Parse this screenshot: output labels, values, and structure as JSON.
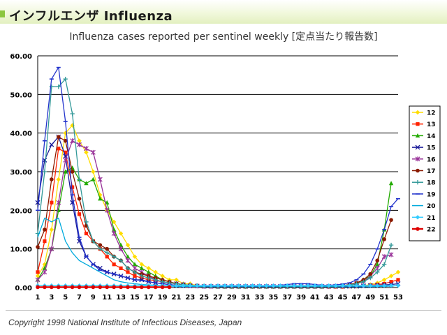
{
  "header": {
    "title": "インフルエンザ Influenza",
    "accent_color": "#8cc63f"
  },
  "footer": {
    "copyright": "Copyright 1998 National Institute of Infectious Diseases, Japan"
  },
  "chart_data": {
    "type": "line",
    "title": "Influenza cases reported per sentinel weekly [定点当たり報告数]",
    "xlabel": "",
    "ylabel": "",
    "x": [
      1,
      2,
      3,
      4,
      5,
      6,
      7,
      8,
      9,
      10,
      11,
      12,
      13,
      14,
      15,
      16,
      17,
      18,
      19,
      20,
      21,
      22,
      23,
      24,
      25,
      26,
      27,
      28,
      29,
      30,
      31,
      32,
      33,
      34,
      35,
      36,
      37,
      38,
      39,
      40,
      41,
      42,
      43,
      44,
      45,
      46,
      47,
      48,
      49,
      50,
      51,
      52,
      53
    ],
    "xticks": [
      "1",
      "3",
      "5",
      "7",
      "9",
      "11",
      "13",
      "15",
      "17",
      "19",
      "21",
      "23",
      "25",
      "27",
      "29",
      "31",
      "33",
      "35",
      "37",
      "39",
      "41",
      "43",
      "45",
      "47",
      "49",
      "51",
      "53"
    ],
    "ylim": [
      0,
      60
    ],
    "yticks": [
      "0.00",
      "10.00",
      "20.00",
      "30.00",
      "40.00",
      "50.00",
      "60.00"
    ],
    "grid": "horizontal",
    "legend_position": "right",
    "series": [
      {
        "name": "12",
        "color": "#ffdd00",
        "marker": "diamond",
        "values": [
          3,
          6,
          15,
          28,
          40,
          42,
          38,
          35,
          30,
          24,
          20,
          17,
          14,
          11,
          8,
          6,
          5,
          4,
          3,
          2,
          2,
          1,
          1,
          0.5,
          0.5,
          0.3,
          0.3,
          0.2,
          0.2,
          0.2,
          0.2,
          0.2,
          0.2,
          0.2,
          0.2,
          0.2,
          0.2,
          0.2,
          0.2,
          0.2,
          0.2,
          0.2,
          0.2,
          0.2,
          0.2,
          0.3,
          0.3,
          0.5,
          0.8,
          1.2,
          2,
          3,
          4
        ]
      },
      {
        "name": "13",
        "color": "#ff2200",
        "marker": "square",
        "values": [
          4,
          12,
          22,
          36,
          35,
          26,
          19,
          14,
          12,
          10,
          8,
          6,
          5,
          4,
          3,
          2.5,
          2,
          1.8,
          1.5,
          1.2,
          1,
          0.8,
          0.5,
          0.4,
          0.3,
          0.3,
          0.2,
          0.2,
          0.2,
          0.2,
          0.2,
          0.2,
          0.2,
          0.2,
          0.2,
          0.2,
          0.2,
          0.2,
          0.2,
          0.2,
          0.2,
          0.2,
          0.2,
          0.2,
          0.2,
          0.3,
          0.3,
          0.4,
          0.6,
          0.8,
          1,
          1.5,
          2
        ]
      },
      {
        "name": "14",
        "color": "#22aa00",
        "marker": "triangle",
        "values": [
          2,
          5,
          10,
          20,
          30,
          31,
          28,
          27,
          28,
          23,
          22,
          15,
          11,
          8,
          6,
          5,
          4,
          3,
          2,
          1.5,
          1,
          0.8,
          0.5,
          0.4,
          0.3,
          0.3,
          0.2,
          0.2,
          0.2,
          0.2,
          0.2,
          0.2,
          0.2,
          0.2,
          0.2,
          0.2,
          0.2,
          0.2,
          0.2,
          0.2,
          0.2,
          0.2,
          0.3,
          0.3,
          0.4,
          0.6,
          1,
          2,
          3,
          6,
          15,
          27,
          null
        ]
      },
      {
        "name": "15",
        "color": "#1a1a99",
        "marker": "x",
        "values": [
          22,
          33,
          37,
          39,
          34,
          22,
          12,
          8,
          6,
          5,
          4,
          3.5,
          3,
          2.5,
          2,
          2,
          1.5,
          1.2,
          1,
          0.8,
          0.6,
          0.5,
          0.4,
          0.4,
          0.3,
          0.3,
          0.3,
          0.3,
          0.3,
          0.3,
          0.3,
          0.3,
          0.3,
          0.3,
          0.3,
          0.3,
          0.3,
          0.3,
          0.3,
          0.3,
          0.3,
          0.3,
          0.3,
          0.3,
          0.3,
          0.3,
          0.3,
          0.4,
          0.5,
          0.6,
          0.7,
          0.8,
          1
        ]
      },
      {
        "name": "16",
        "color": "#993399",
        "marker": "star",
        "values": [
          2,
          4,
          10,
          22,
          33,
          38,
          37,
          36,
          35,
          28,
          20,
          14,
          10,
          7,
          5,
          4,
          3,
          2,
          1.5,
          1.2,
          1,
          0.8,
          0.5,
          0.4,
          0.3,
          0.3,
          0.3,
          0.3,
          0.3,
          0.3,
          0.3,
          0.3,
          0.3,
          0.3,
          0.3,
          0.3,
          0.3,
          0.3,
          0.3,
          0.3,
          0.3,
          0.3,
          0.3,
          0.4,
          0.5,
          0.8,
          1,
          1.5,
          3,
          5,
          8,
          8.5,
          null
        ]
      },
      {
        "name": "17",
        "color": "#8b1a00",
        "marker": "circle",
        "values": [
          10.5,
          15,
          28,
          39,
          38,
          30,
          23,
          16,
          12,
          11,
          10,
          8,
          7,
          5,
          4,
          3.5,
          3,
          2.5,
          2,
          1.5,
          1,
          0.8,
          0.6,
          0.5,
          0.4,
          0.4,
          0.3,
          0.3,
          0.3,
          0.3,
          0.3,
          0.3,
          0.3,
          0.3,
          0.3,
          0.3,
          0.3,
          0.3,
          0.3,
          0.3,
          0.3,
          0.3,
          0.3,
          0.4,
          0.5,
          0.8,
          1.2,
          2,
          3.5,
          7,
          12.5,
          17.5,
          null
        ]
      },
      {
        "name": "18",
        "color": "#339999",
        "marker": "plus",
        "values": [
          14,
          30,
          52,
          52,
          54,
          45,
          28,
          17,
          12,
          10,
          9,
          8,
          7,
          5,
          4,
          3,
          2.5,
          2,
          1.5,
          1.2,
          1,
          0.8,
          0.6,
          0.5,
          0.4,
          0.4,
          0.3,
          0.3,
          0.3,
          0.3,
          0.3,
          0.3,
          0.3,
          0.3,
          0.3,
          0.3,
          0.3,
          0.3,
          0.3,
          0.3,
          0.3,
          0.3,
          0.3,
          0.4,
          0.5,
          0.7,
          1,
          1.5,
          2.5,
          4,
          6,
          11,
          null
        ]
      },
      {
        "name": "19",
        "color": "#2233cc",
        "marker": "dash",
        "values": [
          20,
          38,
          54,
          57,
          43,
          24,
          13,
          8,
          6,
          4.5,
          4,
          3.5,
          3,
          2.5,
          2,
          1.8,
          1.5,
          1.2,
          1,
          0.8,
          0.5,
          0.4,
          0.3,
          0.3,
          0.3,
          0.3,
          0.3,
          0.3,
          0.3,
          0.3,
          0.3,
          0.3,
          0.3,
          0.3,
          0.4,
          0.6,
          0.8,
          1,
          1,
          1,
          0.8,
          0.6,
          0.6,
          0.7,
          0.9,
          1.2,
          2,
          3.5,
          6,
          10,
          15,
          21,
          23
        ]
      },
      {
        "name": "20",
        "color": "#00aadd",
        "marker": "none",
        "values": [
          13,
          18,
          17,
          18,
          12,
          9,
          7,
          6,
          5,
          4,
          3,
          2,
          1.5,
          1.2,
          1,
          0.8,
          0.7,
          0.6,
          0.5,
          0.4,
          0.3,
          0.3,
          0.3,
          0.3,
          0.2,
          0.2,
          0.2,
          0.2,
          0.2,
          0.2,
          0.2,
          0.2,
          0.2,
          0.2,
          0.2,
          0.2,
          0.2,
          0.2,
          0.2,
          0.2,
          0.2,
          0.2,
          0.2,
          0.2,
          0.2,
          0.2,
          0.2,
          0.2,
          0.2,
          0.3,
          0.3,
          0.4,
          0.5
        ]
      },
      {
        "name": "21",
        "color": "#33ccff",
        "marker": "diamond",
        "values": [
          0.5,
          0.5,
          0.5,
          0.5,
          0.5,
          0.5,
          0.5,
          0.5,
          0.5,
          0.5,
          0.5,
          0.5,
          0.5,
          0.5,
          0.5,
          0.5,
          0.5,
          0.5,
          0.5,
          0.5,
          0.5,
          0.5,
          0.5,
          0.5,
          0.5,
          0.5,
          0.5,
          0.5,
          0.5,
          0.5,
          0.5,
          0.5,
          0.5,
          0.5,
          0.5,
          0.5,
          0.5,
          0.5,
          0.5,
          0.5,
          0.5,
          0.5,
          0.5,
          0.5,
          0.5,
          0.5,
          0.5,
          0.5,
          0.5,
          0.5,
          0.5,
          0.5,
          0.5
        ]
      },
      {
        "name": "22",
        "color": "#dd0000",
        "marker": "circle",
        "values": [
          0.1,
          0.1,
          0.1,
          0.1,
          0.1,
          0.1,
          0.1,
          0.1,
          0.1,
          0.1,
          0.1,
          0.1,
          0.1,
          0.1,
          0.1,
          0.1,
          0.1,
          0.1,
          0.1,
          0.1,
          null,
          null,
          null,
          null,
          null,
          null,
          null,
          null,
          null,
          null,
          null,
          null,
          null,
          null,
          null,
          null,
          null,
          null,
          null,
          null,
          null,
          null,
          null,
          null,
          null,
          null,
          null,
          null,
          null,
          null,
          null,
          null,
          null
        ]
      }
    ]
  }
}
